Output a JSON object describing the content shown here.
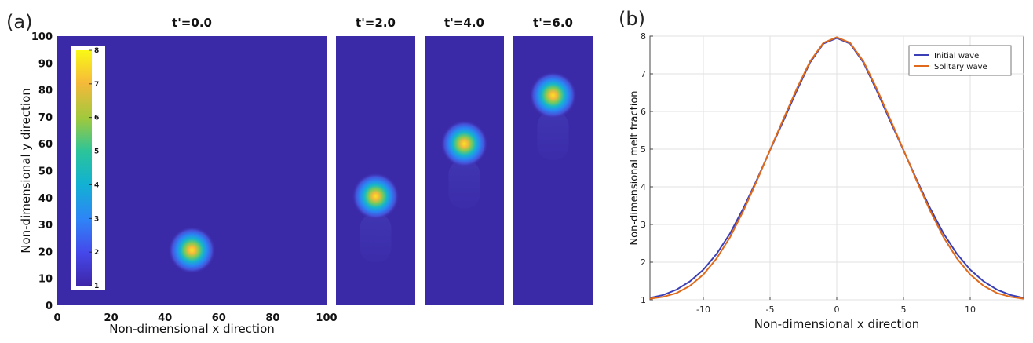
{
  "chart_data": [
    {
      "type": "heatmap",
      "panel_label": "(a)",
      "xlabel": "Non-dimensional x direction",
      "ylabel": "Non-dimensional y direction",
      "xlim": [
        0,
        100
      ],
      "ylim": [
        0,
        100
      ],
      "x_ticks": [
        "0",
        "20",
        "40",
        "60",
        "80",
        "100"
      ],
      "y_ticks": [
        "0",
        "10",
        "20",
        "30",
        "40",
        "50",
        "60",
        "70",
        "80",
        "90",
        "100"
      ],
      "colorbar": {
        "range": [
          1,
          8
        ],
        "ticks": [
          "1",
          "2",
          "3",
          "4",
          "5",
          "6",
          "7",
          "8"
        ],
        "background_color": "#3a2aa8"
      },
      "frames": [
        {
          "title": "t'=0.0",
          "peak_center": [
            50,
            20.5
          ],
          "peak_value": 7.3,
          "trail_top": null
        },
        {
          "title": "t'=2.0",
          "peak_center": [
            50,
            40.5
          ],
          "peak_value": 7.2,
          "trail_top": 34
        },
        {
          "title": "t'=4.0",
          "peak_center": [
            50,
            60
          ],
          "peak_value": 7.1,
          "trail_top": 54
        },
        {
          "title": "t'=6.0",
          "peak_center": [
            50,
            78
          ],
          "peak_value": 7.0,
          "trail_top": 72
        }
      ]
    },
    {
      "type": "line",
      "panel_label": "(b)",
      "xlabel": "Non-dimensional x direction",
      "ylabel": "Non-dimensional melt fraction",
      "xlim": [
        -14,
        14
      ],
      "ylim": [
        1,
        8
      ],
      "x_ticks": [
        -10,
        -5,
        0,
        5,
        10
      ],
      "y_ticks": [
        1,
        2,
        3,
        4,
        5,
        6,
        7,
        8
      ],
      "grid": true,
      "legend_position": "top-right",
      "series": [
        {
          "name": "Initial wave",
          "color": "#3b3fb6",
          "x": [
            -14,
            -13,
            -12,
            -11,
            -10,
            -9,
            -8,
            -7,
            -6,
            -5,
            -4,
            -3,
            -2,
            -1,
            0,
            1,
            2,
            3,
            4,
            5,
            6,
            7,
            8,
            9,
            10,
            11,
            12,
            13,
            14
          ],
          "values": [
            1.05,
            1.13,
            1.27,
            1.49,
            1.8,
            2.22,
            2.76,
            3.43,
            4.18,
            4.97,
            5.75,
            6.55,
            7.3,
            7.8,
            7.95,
            7.8,
            7.3,
            6.55,
            5.75,
            4.97,
            4.18,
            3.43,
            2.76,
            2.22,
            1.8,
            1.49,
            1.27,
            1.13,
            1.05
          ]
        },
        {
          "name": "Solitary wave",
          "color": "#e06a1b",
          "x": [
            -14,
            -13,
            -12,
            -11,
            -10,
            -9,
            -8,
            -7,
            -6,
            -5,
            -4,
            -3,
            -2,
            -1,
            0,
            1,
            2,
            3,
            4,
            5,
            6,
            7,
            8,
            9,
            10,
            11,
            12,
            13,
            14
          ],
          "values": [
            1.03,
            1.08,
            1.18,
            1.37,
            1.67,
            2.1,
            2.66,
            3.36,
            4.15,
            4.98,
            5.8,
            6.6,
            7.33,
            7.82,
            7.97,
            7.82,
            7.33,
            6.6,
            5.8,
            4.98,
            4.15,
            3.36,
            2.66,
            2.1,
            1.67,
            1.37,
            1.18,
            1.08,
            1.03
          ]
        }
      ]
    }
  ]
}
